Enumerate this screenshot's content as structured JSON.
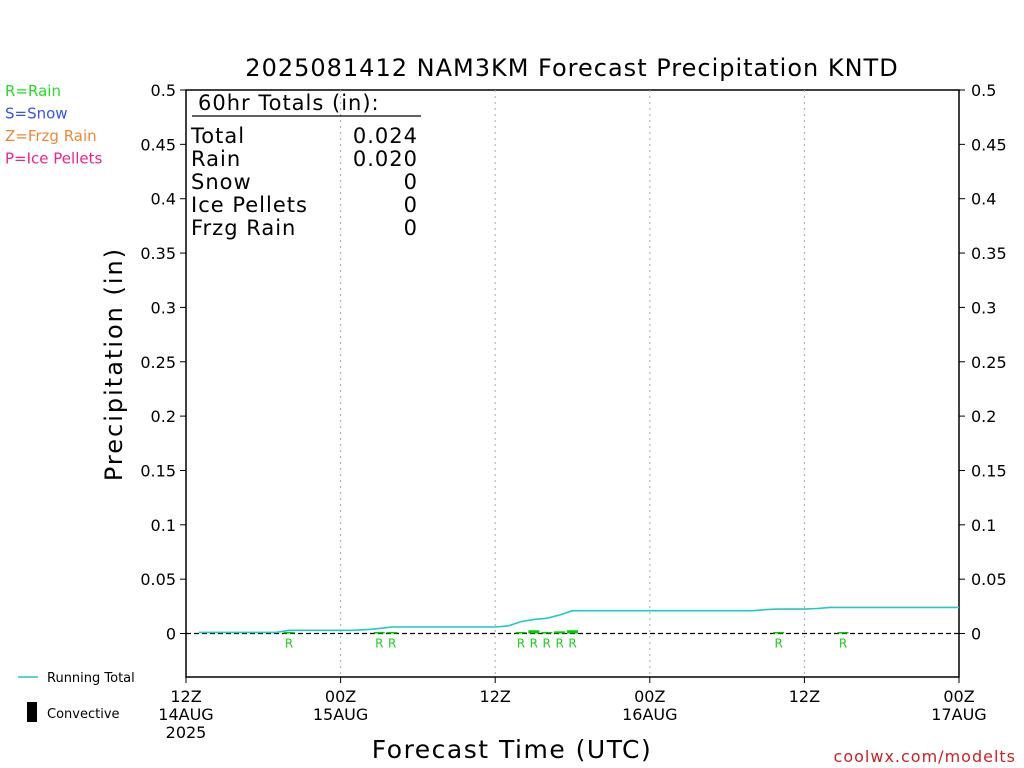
{
  "chart_data": {
    "type": "line",
    "title": "2025081412 NAM3KM Forecast Precipitation KNTD",
    "xlabel": "Forecast Time (UTC)",
    "ylabel": "Precipitation (in)",
    "ylim": [
      -0.04,
      0.5
    ],
    "xlim_hours": [
      0,
      60
    ],
    "y_ticks": [
      0,
      0.05,
      0.1,
      0.15,
      0.2,
      0.25,
      0.3,
      0.35,
      0.4,
      0.45,
      0.5
    ],
    "y_tick_labels": [
      "0",
      "0.05",
      "0.1",
      "0.15",
      "0.2",
      "0.25",
      "0.3",
      "0.35",
      "0.4",
      "0.45",
      "0.5"
    ],
    "x_ticks": [
      {
        "hour": 0,
        "line1": "12Z",
        "line2": "14AUG",
        "line3": "2025"
      },
      {
        "hour": 12,
        "line1": "00Z",
        "line2": "15AUG",
        "line3": ""
      },
      {
        "hour": 24,
        "line1": "12Z",
        "line2": "",
        "line3": ""
      },
      {
        "hour": 36,
        "line1": "00Z",
        "line2": "16AUG",
        "line3": ""
      },
      {
        "hour": 48,
        "line1": "12Z",
        "line2": "",
        "line3": ""
      },
      {
        "hour": 60,
        "line1": "00Z",
        "line2": "17AUG",
        "line3": ""
      }
    ],
    "grid": "vertical dotted at 12-hour marks",
    "zero_line": "dashed",
    "running_total": {
      "name": "Running Total",
      "color": "#20c8c8",
      "x": [
        1,
        7,
        8,
        13,
        14.5,
        16,
        24,
        25,
        26,
        27,
        28,
        29,
        30,
        36,
        44,
        45,
        46,
        47,
        48,
        49,
        50,
        60
      ],
      "y": [
        0.001,
        0.001,
        0.003,
        0.003,
        0.004,
        0.006,
        0.006,
        0.007,
        0.011,
        0.013,
        0.014,
        0.017,
        0.021,
        0.021,
        0.021,
        0.022,
        0.0225,
        0.0225,
        0.0225,
        0.023,
        0.024,
        0.024
      ]
    },
    "convective": {
      "name": "Convective",
      "color": "#000000"
    },
    "hourly_precip": {
      "color": "#00cc00",
      "x": [
        8,
        15,
        16,
        26,
        27,
        28,
        29,
        30,
        46,
        51
      ],
      "y": [
        0.0005,
        0.0003,
        0.0003,
        0.0005,
        0.003,
        0.001,
        0.002,
        0.003,
        0.0003,
        0.0003
      ]
    },
    "ptype_markers": {
      "color": "#22cc22",
      "items": [
        {
          "hour": 8,
          "label": "R"
        },
        {
          "hour": 15,
          "label": "R"
        },
        {
          "hour": 16,
          "label": "R"
        },
        {
          "hour": 26,
          "label": "R"
        },
        {
          "hour": 27,
          "label": "R"
        },
        {
          "hour": 28,
          "label": "R"
        },
        {
          "hour": 29,
          "label": "R"
        },
        {
          "hour": 30,
          "label": "R"
        },
        {
          "hour": 46,
          "label": "R"
        },
        {
          "hour": 51,
          "label": "R"
        }
      ]
    },
    "totals_box": {
      "heading": "60hr Totals (in):",
      "rows": [
        {
          "label": "Total",
          "value": "0.024"
        },
        {
          "label": "Rain",
          "value": "0.020"
        },
        {
          "label": "Snow",
          "value": "0"
        },
        {
          "label": "Ice Pellets",
          "value": "0"
        },
        {
          "label": "Frzg Rain",
          "value": "0"
        }
      ]
    },
    "ptype_legend": [
      {
        "label": "R=Rain",
        "color": "#22dd22"
      },
      {
        "label": "S=Snow",
        "color": "#3355ee"
      },
      {
        "label": "Z=Frzg Rain",
        "color": "#ee8833"
      },
      {
        "label": "P=Ice Pellets",
        "color": "#ee2288"
      }
    ],
    "series_legend": [
      {
        "label": "Running Total",
        "kind": "line",
        "color": "#20c8c8"
      },
      {
        "label": "Convective",
        "kind": "bar",
        "color": "#000000"
      }
    ],
    "credit": "coolwx.com/modelts",
    "credit_color": "#cc2222"
  }
}
